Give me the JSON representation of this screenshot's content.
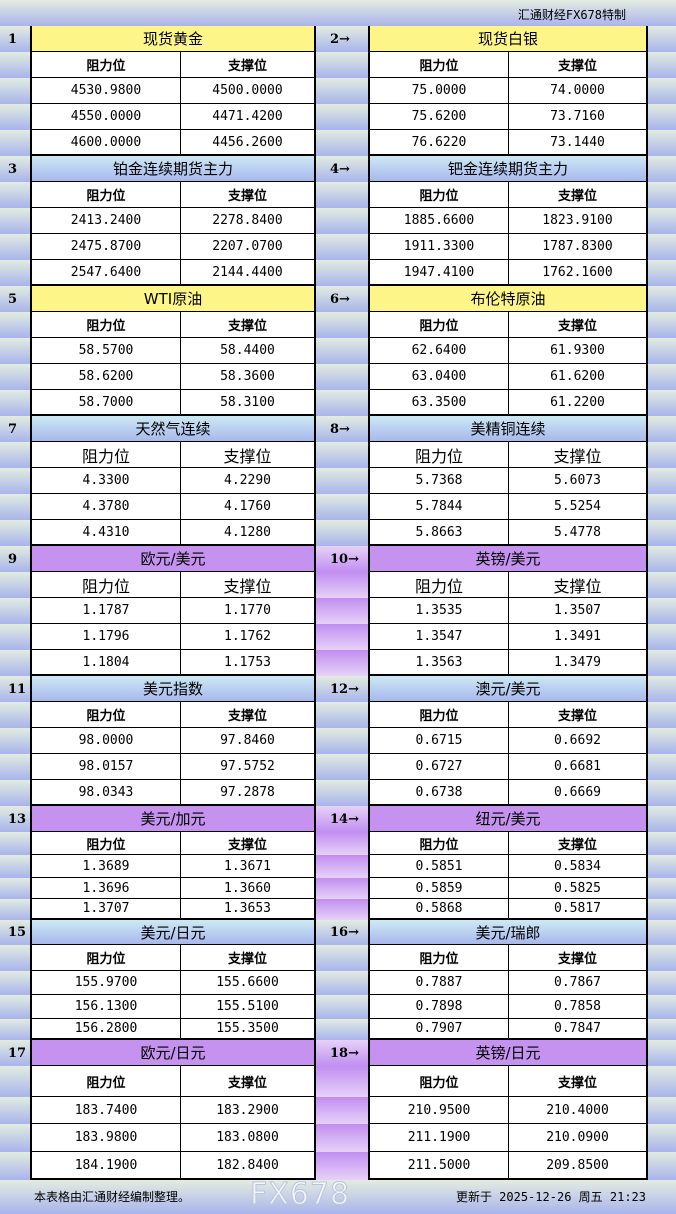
{
  "header": {
    "brand": "汇通财经FX678特制"
  },
  "columns": {
    "resistance": "阻力位",
    "support": "支撑位"
  },
  "pairs": [
    {
      "left": {
        "num": "1",
        "title": "现货黄金",
        "rows": [
          [
            "4530.9800",
            "4500.0000"
          ],
          [
            "4550.0000",
            "4471.4200"
          ],
          [
            "4600.0000",
            "4456.2600"
          ]
        ]
      },
      "right": {
        "num": "2→",
        "title": "现货白银",
        "rows": [
          [
            "75.0000",
            "74.0000"
          ],
          [
            "75.6200",
            "73.7160"
          ],
          [
            "76.6220",
            "73.1440"
          ]
        ]
      },
      "style": "y"
    },
    {
      "left": {
        "num": "3",
        "title": "铂金连续期货主力",
        "rows": [
          [
            "2413.2400",
            "2278.8400"
          ],
          [
            "2475.8700",
            "2207.0700"
          ],
          [
            "2547.6400",
            "2144.4400"
          ]
        ]
      },
      "right": {
        "num": "4→",
        "title": "钯金连续期货主力",
        "rows": [
          [
            "1885.6600",
            "1823.9100"
          ],
          [
            "1911.3300",
            "1787.8300"
          ],
          [
            "1947.4100",
            "1762.1600"
          ]
        ]
      },
      "style": "b"
    },
    {
      "left": {
        "num": "5",
        "title": "WTI原油",
        "rows": [
          [
            "58.5700",
            "58.4400"
          ],
          [
            "58.6200",
            "58.3600"
          ],
          [
            "58.7000",
            "58.3100"
          ]
        ]
      },
      "right": {
        "num": "6→",
        "title": "布伦特原油",
        "rows": [
          [
            "62.6400",
            "61.9300"
          ],
          [
            "63.0400",
            "61.6200"
          ],
          [
            "63.3500",
            "61.2200"
          ]
        ]
      },
      "style": "y"
    },
    {
      "left": {
        "num": "7",
        "title": "天然气连续",
        "rows": [
          [
            "4.3300",
            "4.2290"
          ],
          [
            "4.3780",
            "4.1760"
          ],
          [
            "4.4310",
            "4.1280"
          ]
        ]
      },
      "right": {
        "num": "8→",
        "title": "美精铜连续",
        "rows": [
          [
            "5.7368",
            "5.6073"
          ],
          [
            "5.7844",
            "5.5254"
          ],
          [
            "5.8663",
            "5.4778"
          ]
        ]
      },
      "style": "b"
    },
    {
      "left": {
        "num": "9",
        "title": "欧元/美元",
        "rows": [
          [
            "1.1787",
            "1.1770"
          ],
          [
            "1.1796",
            "1.1762"
          ],
          [
            "1.1804",
            "1.1753"
          ]
        ]
      },
      "right": {
        "num": "10→",
        "title": "英镑/美元",
        "rows": [
          [
            "1.3535",
            "1.3507"
          ],
          [
            "1.3547",
            "1.3491"
          ],
          [
            "1.3563",
            "1.3479"
          ]
        ]
      },
      "style": "p"
    },
    {
      "left": {
        "num": "11",
        "title": "美元指数",
        "rows": [
          [
            "98.0000",
            "97.8460"
          ],
          [
            "98.0157",
            "97.5752"
          ],
          [
            "98.0343",
            "97.2878"
          ]
        ]
      },
      "right": {
        "num": "12→",
        "title": "澳元/美元",
        "rows": [
          [
            "0.6715",
            "0.6692"
          ],
          [
            "0.6727",
            "0.6681"
          ],
          [
            "0.6738",
            "0.6669"
          ]
        ]
      },
      "style": "b"
    },
    {
      "left": {
        "num": "13",
        "title": "美元/加元",
        "rows": [
          [
            "1.3689",
            "1.3671"
          ],
          [
            "1.3696",
            "1.3660"
          ],
          [
            "1.3707",
            "1.3653"
          ]
        ]
      },
      "right": {
        "num": "14→",
        "title": "纽元/美元",
        "rows": [
          [
            "0.5851",
            "0.5834"
          ],
          [
            "0.5859",
            "0.5825"
          ],
          [
            "0.5868",
            "0.5817"
          ]
        ]
      },
      "style": "p"
    },
    {
      "left": {
        "num": "15",
        "title": "美元/日元",
        "rows": [
          [
            "155.9700",
            "155.6600"
          ],
          [
            "156.1300",
            "155.5100"
          ],
          [
            "156.2800",
            "155.3500"
          ]
        ]
      },
      "right": {
        "num": "16→",
        "title": "美元/瑞郎",
        "rows": [
          [
            "0.7887",
            "0.7867"
          ],
          [
            "0.7898",
            "0.7858"
          ],
          [
            "0.7907",
            "0.7847"
          ]
        ]
      },
      "style": "b"
    },
    {
      "left": {
        "num": "17",
        "title": "欧元/日元",
        "rows": [
          [
            "183.7400",
            "183.2900"
          ],
          [
            "183.9800",
            "183.0800"
          ],
          [
            "184.1900",
            "182.8400"
          ]
        ]
      },
      "right": {
        "num": "18→",
        "title": "英镑/日元",
        "rows": [
          [
            "210.9500",
            "210.4000"
          ],
          [
            "211.1900",
            "210.0900"
          ],
          [
            "211.5000",
            "209.8500"
          ]
        ]
      },
      "style": "p"
    }
  ],
  "footer": {
    "note": "本表格由汇通财经编制整理。",
    "updated": "更新于 2025-12-26 周五 21:23"
  },
  "watermark": "FX678"
}
